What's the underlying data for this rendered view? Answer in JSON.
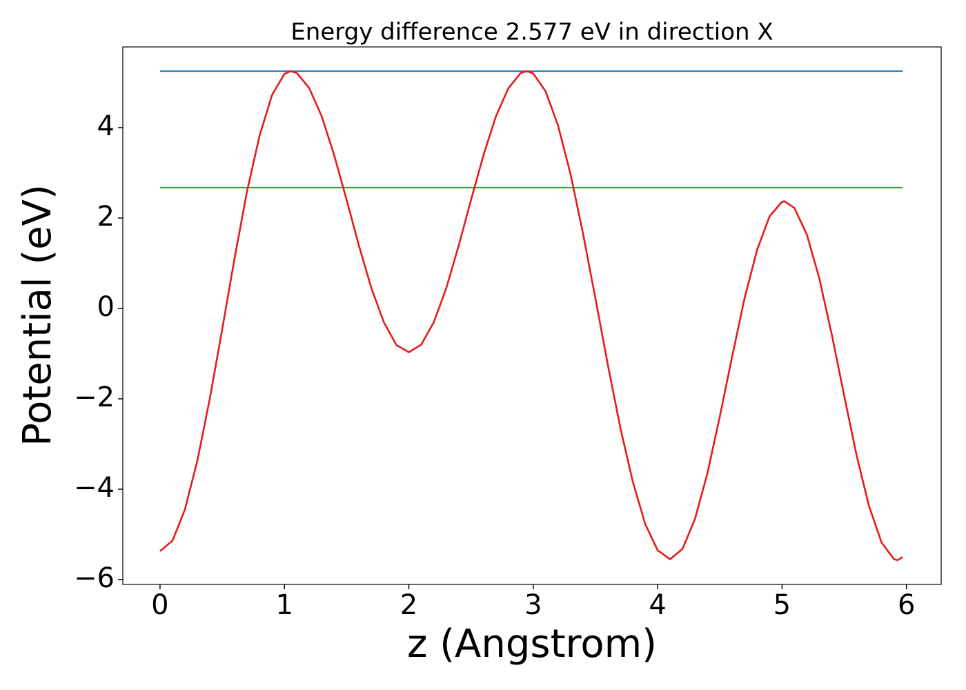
{
  "chart_data": {
    "type": "line",
    "title": "Energy difference 2.577 eV in direction X",
    "x_label": "z (Angstrom)",
    "y_label": "Potential (eV)",
    "xlim": [
      -0.299,
      6.279
    ],
    "ylim": [
      -6.107,
      5.786
    ],
    "xticks": [
      0,
      1,
      2,
      3,
      4,
      5,
      6
    ],
    "yticks": [
      {
        "value": -6,
        "label": "−6"
      },
      {
        "value": -4,
        "label": "−4"
      },
      {
        "value": -2,
        "label": "−2"
      },
      0,
      2,
      4
    ],
    "grid": false,
    "series": [
      {
        "color": "#1f77b4",
        "x": [
          0,
          5.97
        ],
        "values": [
          5.25,
          5.25
        ]
      },
      {
        "color": "#2ca02c",
        "x": [
          0,
          5.97
        ],
        "values": [
          2.673,
          2.673
        ]
      },
      {
        "color": "#e41a1c",
        "x": [
          0,
          0.1,
          0.2,
          0.3,
          0.4,
          0.5,
          0.6,
          0.7,
          0.8,
          0.9,
          1.0,
          1.05,
          1.1,
          1.2,
          1.3,
          1.4,
          1.5,
          1.6,
          1.7,
          1.8,
          1.9,
          2.0,
          2.1,
          2.2,
          2.3,
          2.4,
          2.5,
          2.6,
          2.7,
          2.8,
          2.9,
          2.95,
          3.0,
          3.1,
          3.2,
          3.3,
          3.4,
          3.5,
          3.6,
          3.7,
          3.8,
          3.9,
          4.0,
          4.1,
          4.2,
          4.3,
          4.4,
          4.5,
          4.6,
          4.7,
          4.8,
          4.9,
          5.0,
          5.02,
          5.1,
          5.2,
          5.3,
          5.4,
          5.5,
          5.6,
          5.7,
          5.8,
          5.9,
          5.93,
          5.97
        ],
        "values": [
          -5.37,
          -5.14,
          -4.45,
          -3.37,
          -2.0,
          -0.46,
          1.12,
          2.6,
          3.82,
          4.72,
          5.19,
          5.25,
          5.21,
          4.87,
          4.25,
          3.39,
          2.4,
          1.38,
          0.44,
          -0.31,
          -0.81,
          -0.97,
          -0.8,
          -0.31,
          0.44,
          1.38,
          2.4,
          3.39,
          4.25,
          4.87,
          5.21,
          5.25,
          5.2,
          4.8,
          4.04,
          2.97,
          1.66,
          0.22,
          -1.25,
          -2.64,
          -3.83,
          -4.77,
          -5.35,
          -5.55,
          -5.32,
          -4.66,
          -3.65,
          -2.39,
          -1.05,
          0.24,
          1.3,
          2.04,
          2.36,
          2.37,
          2.22,
          1.63,
          0.66,
          -0.58,
          -1.94,
          -3.26,
          -4.38,
          -5.18,
          -5.55,
          -5.57,
          -5.5
        ]
      }
    ]
  }
}
